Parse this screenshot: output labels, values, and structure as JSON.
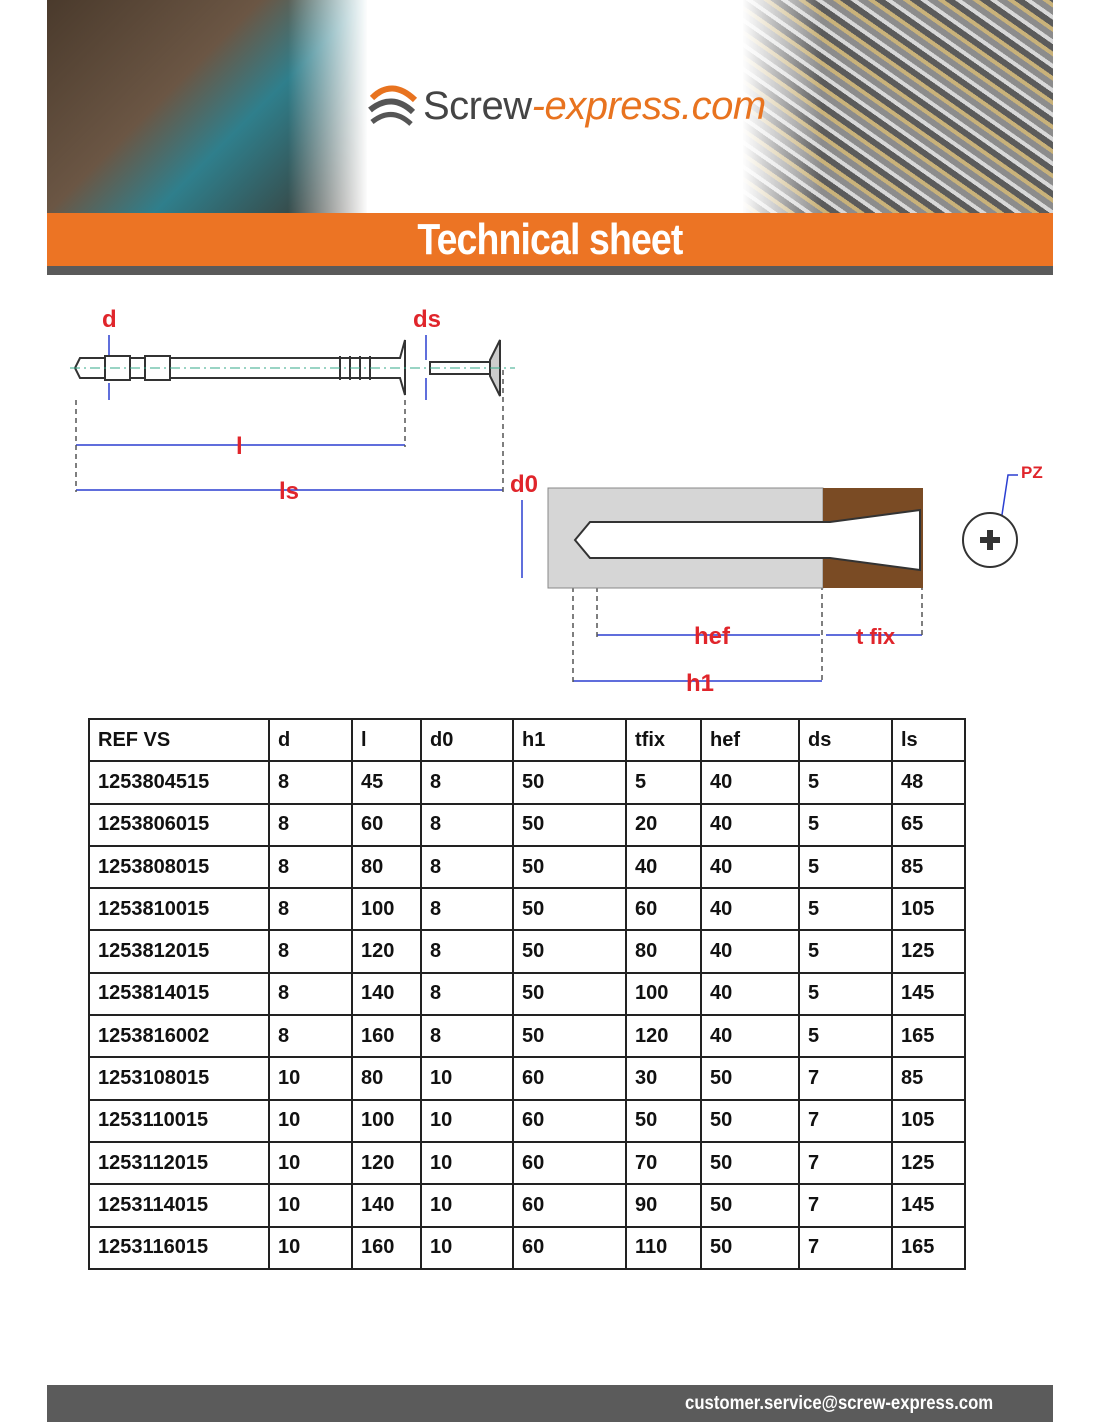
{
  "header": {
    "logo_main": "Screw",
    "logo_accent": "-express.com",
    "title": "Technical sheet"
  },
  "diagram": {
    "labels": {
      "d": "d",
      "ds": "ds",
      "l": "l",
      "ls": "ls",
      "d0": "d0",
      "hef": "hef",
      "tfix": "t fix",
      "h1": "h1",
      "pz": "PZ"
    }
  },
  "table": {
    "headers": [
      "REF VS",
      "d",
      "l",
      "d0",
      "h1",
      "tfix",
      "hef",
      "ds",
      "ls"
    ],
    "rows": [
      [
        "1253804515",
        "8",
        "45",
        "8",
        "50",
        "5",
        "40",
        "5",
        "48"
      ],
      [
        "1253806015",
        "8",
        "60",
        "8",
        "50",
        "20",
        "40",
        "5",
        "65"
      ],
      [
        "1253808015",
        "8",
        "80",
        "8",
        "50",
        "40",
        "40",
        "5",
        "85"
      ],
      [
        "1253810015",
        "8",
        "100",
        "8",
        "50",
        "60",
        "40",
        "5",
        "105"
      ],
      [
        "1253812015",
        "8",
        "120",
        "8",
        "50",
        "80",
        "40",
        "5",
        "125"
      ],
      [
        "1253814015",
        "8",
        "140",
        "8",
        "50",
        "100",
        "40",
        "5",
        "145"
      ],
      [
        "1253816002",
        "8",
        "160",
        "8",
        "50",
        "120",
        "40",
        "5",
        "165"
      ],
      [
        "1253108015",
        "10",
        "80",
        "10",
        "60",
        "30",
        "50",
        "7",
        "85"
      ],
      [
        "1253110015",
        "10",
        "100",
        "10",
        "60",
        "50",
        "50",
        "7",
        "105"
      ],
      [
        "1253112015",
        "10",
        "120",
        "10",
        "60",
        "70",
        "50",
        "7",
        "125"
      ],
      [
        "1253114015",
        "10",
        "140",
        "10",
        "60",
        "90",
        "50",
        "7",
        "145"
      ],
      [
        "1253116015",
        "10",
        "160",
        "10",
        "60",
        "110",
        "50",
        "7",
        "165"
      ]
    ]
  },
  "footer": {
    "email": "customer.service@screw-express.com"
  },
  "colors": {
    "orange": "#ec7424",
    "grey": "#5b5b5b",
    "label_red": "#e0252b",
    "dimension_blue": "#2b3fd1"
  }
}
